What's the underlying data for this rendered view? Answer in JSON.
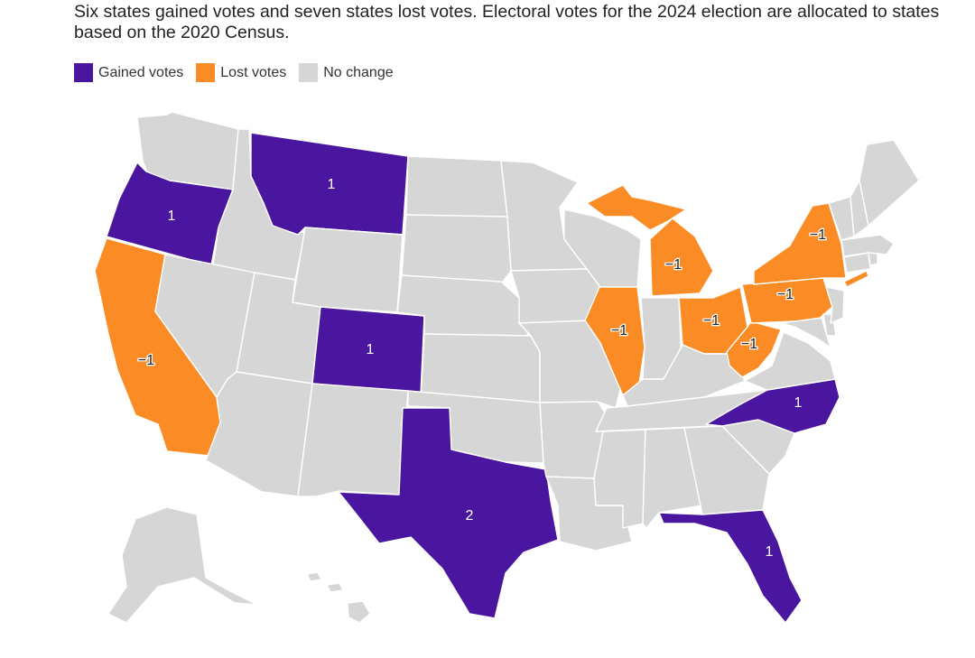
{
  "subtitle": "Six states gained votes and seven states lost votes. Electoral votes for the 2024 election are allocated to states based on the 2020 Census.",
  "legend": [
    {
      "label": "Gained votes",
      "color": "#4a16a0"
    },
    {
      "label": "Lost votes",
      "color": "#fb8b24"
    },
    {
      "label": "No change",
      "color": "#d6d6d6"
    }
  ],
  "colors": {
    "gained": "#4a16a0",
    "lost": "#fb8b24",
    "none": "#d6d6d6"
  },
  "states": {
    "OR": {
      "status": "gained",
      "label": "1"
    },
    "MT": {
      "status": "gained",
      "label": "1"
    },
    "CO": {
      "status": "gained",
      "label": "1"
    },
    "TX": {
      "status": "gained",
      "label": "2"
    },
    "NC": {
      "status": "gained",
      "label": "1"
    },
    "FL": {
      "status": "gained",
      "label": "1"
    },
    "CA": {
      "status": "lost",
      "label": "−1"
    },
    "IL": {
      "status": "lost",
      "label": "−1"
    },
    "MI": {
      "status": "lost",
      "label": "−1"
    },
    "OH": {
      "status": "lost",
      "label": "−1"
    },
    "PA": {
      "status": "lost",
      "label": "−1"
    },
    "NY": {
      "status": "lost",
      "label": "−1"
    },
    "WV": {
      "status": "lost",
      "label": "−1"
    },
    "WA": {
      "status": "none"
    },
    "ID": {
      "status": "none"
    },
    "NV": {
      "status": "none"
    },
    "UT": {
      "status": "none"
    },
    "AZ": {
      "status": "none"
    },
    "WY": {
      "status": "none"
    },
    "NM": {
      "status": "none"
    },
    "ND": {
      "status": "none"
    },
    "SD": {
      "status": "none"
    },
    "NE": {
      "status": "none"
    },
    "KS": {
      "status": "none"
    },
    "OK": {
      "status": "none"
    },
    "MN": {
      "status": "none"
    },
    "IA": {
      "status": "none"
    },
    "MO": {
      "status": "none"
    },
    "AR": {
      "status": "none"
    },
    "LA": {
      "status": "none"
    },
    "WI": {
      "status": "none"
    },
    "IN": {
      "status": "none"
    },
    "KY": {
      "status": "none"
    },
    "TN": {
      "status": "none"
    },
    "MS": {
      "status": "none"
    },
    "AL": {
      "status": "none"
    },
    "GA": {
      "status": "none"
    },
    "SC": {
      "status": "none"
    },
    "VA": {
      "status": "none"
    },
    "MD": {
      "status": "none"
    },
    "DE": {
      "status": "none"
    },
    "NJ": {
      "status": "none"
    },
    "CT": {
      "status": "none"
    },
    "RI": {
      "status": "none"
    },
    "MA": {
      "status": "none"
    },
    "VT": {
      "status": "none"
    },
    "NH": {
      "status": "none"
    },
    "ME": {
      "status": "none"
    },
    "AK": {
      "status": "none"
    },
    "HI": {
      "status": "none"
    }
  }
}
